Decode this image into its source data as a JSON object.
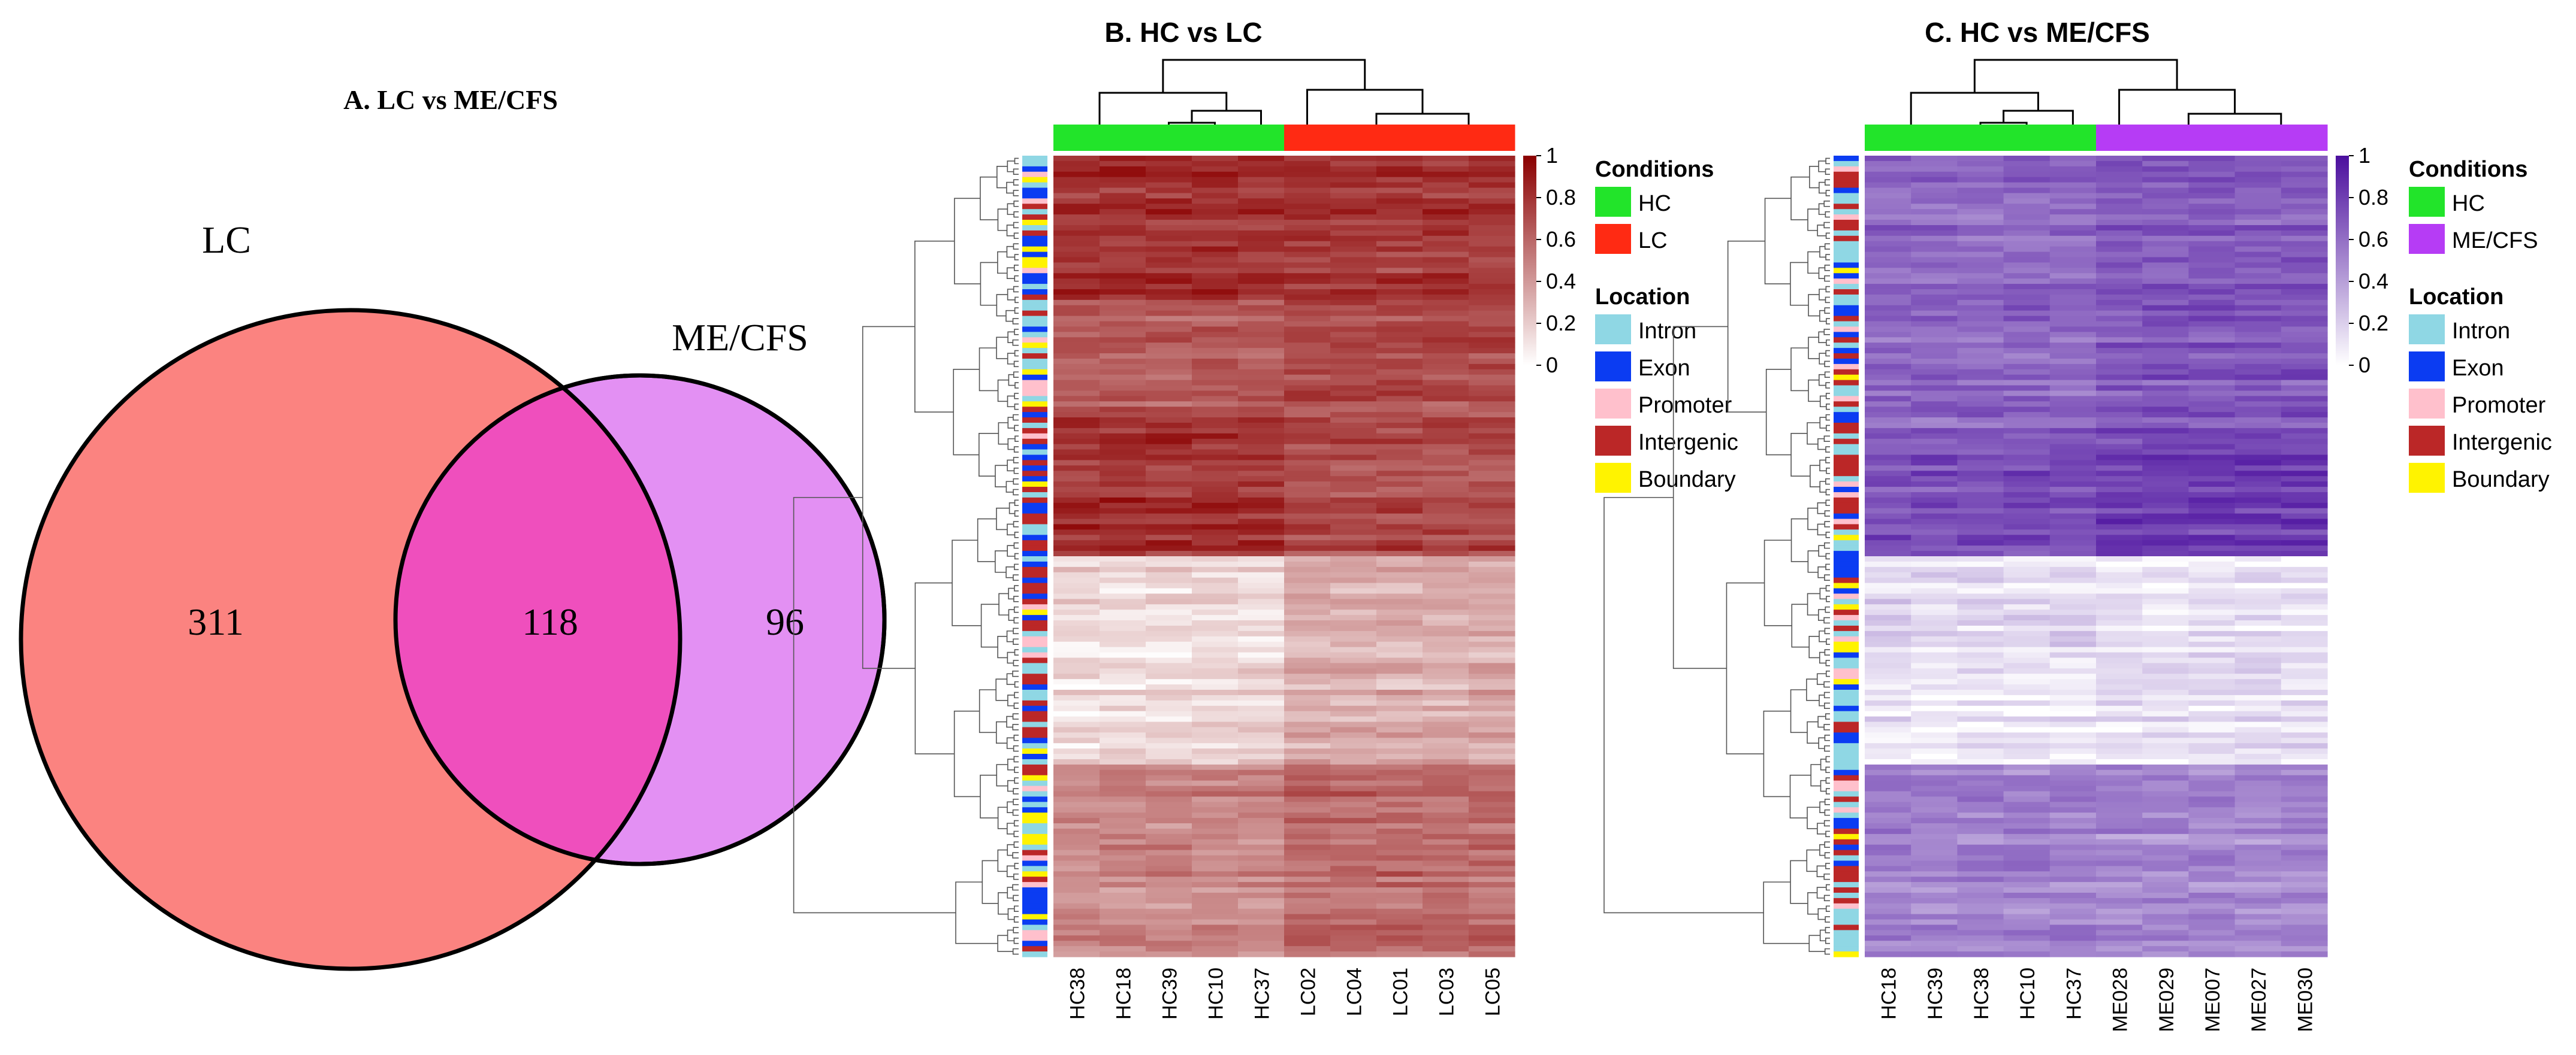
{
  "chart_data": [
    {
      "type": "venn",
      "title": "A. LC vs ME/CFS",
      "sets": [
        {
          "name": "LC",
          "color": "#fb8380",
          "only": 311
        },
        {
          "name": "ME/CFS",
          "color": "#e390f3",
          "only": 96
        }
      ],
      "overlap": {
        "value": 118,
        "color": "#ef4fbd"
      }
    },
    {
      "type": "heatmap",
      "title": "B. HC vs LC",
      "columns": [
        "HC38",
        "HC18",
        "HC39",
        "HC10",
        "HC37",
        "LC02",
        "LC04",
        "LC01",
        "LC03",
        "LC05"
      ],
      "column_groups": [
        "HC",
        "HC",
        "HC",
        "HC",
        "HC",
        "LC",
        "LC",
        "LC",
        "LC",
        "LC"
      ],
      "row_count": 150,
      "color_low": "#ffffff",
      "color_high": "#8b0000",
      "colorbar": {
        "range": [
          0,
          1
        ],
        "ticks": [
          "1",
          "0.8",
          "0.6",
          "0.4",
          "0.2",
          "0"
        ]
      },
      "legend": {
        "conditions_title": "Conditions",
        "conditions": [
          {
            "label": "HC",
            "color": "#22e42a"
          },
          {
            "label": "LC",
            "color": "#ff2a13"
          }
        ],
        "location_title": "Location",
        "locations": [
          {
            "label": "Intron",
            "color": "#8fd7e4"
          },
          {
            "label": "Exon",
            "color": "#0b3cf2"
          },
          {
            "label": "Promoter",
            "color": "#ffc0cc"
          },
          {
            "label": "Intergenic",
            "color": "#bb2727"
          },
          {
            "label": "Boundary",
            "color": "#fff300"
          }
        ]
      }
    },
    {
      "type": "heatmap",
      "title": "C. HC vs ME/CFS",
      "columns": [
        "HC18",
        "HC39",
        "HC38",
        "HC10",
        "HC37",
        "ME028",
        "ME029",
        "ME007",
        "ME027",
        "ME030"
      ],
      "column_groups": [
        "HC",
        "HC",
        "HC",
        "HC",
        "HC",
        "ME/CFS",
        "ME/CFS",
        "ME/CFS",
        "ME/CFS",
        "ME/CFS"
      ],
      "row_count": 150,
      "color_low": "#ffffff",
      "color_high": "#4b0f9e",
      "colorbar": {
        "range": [
          0,
          1
        ],
        "ticks": [
          "1",
          "0.8",
          "0.6",
          "0.4",
          "0.2",
          "0"
        ]
      },
      "legend": {
        "conditions_title": "Conditions",
        "conditions": [
          {
            "label": "HC",
            "color": "#22e42a"
          },
          {
            "label": "ME/CFS",
            "color": "#b63cf5"
          }
        ],
        "location_title": "Location",
        "locations": [
          {
            "label": "Intron",
            "color": "#8fd7e4"
          },
          {
            "label": "Exon",
            "color": "#0b3cf2"
          },
          {
            "label": "Promoter",
            "color": "#ffc0cc"
          },
          {
            "label": "Intergenic",
            "color": "#bb2727"
          },
          {
            "label": "Boundary",
            "color": "#fff300"
          }
        ]
      }
    }
  ]
}
